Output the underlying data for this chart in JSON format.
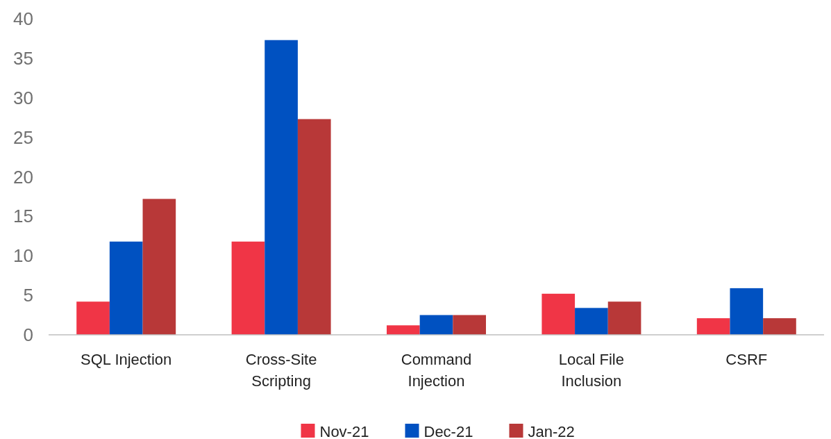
{
  "chart_data": {
    "type": "bar",
    "categories": [
      "SQL Injection",
      "Cross-Site Scripting",
      "Command Injection",
      "Local File Inclusion",
      "CSRF"
    ],
    "series": [
      {
        "name": "Nov-21",
        "color": "#f03546",
        "values": [
          4.2,
          11.8,
          1.2,
          5.2,
          2.1
        ]
      },
      {
        "name": "Dec-21",
        "color": "#0051c1",
        "values": [
          11.8,
          37.3,
          2.5,
          3.4,
          5.9
        ]
      },
      {
        "name": "Jan-22",
        "color": "#b83838",
        "values": [
          17.2,
          27.3,
          2.5,
          4.2,
          2.1
        ]
      }
    ],
    "ylim": [
      0,
      40
    ],
    "yticks": [
      0,
      5,
      10,
      15,
      20,
      25,
      30,
      35,
      40
    ],
    "grid": false,
    "legend": "bottom"
  }
}
